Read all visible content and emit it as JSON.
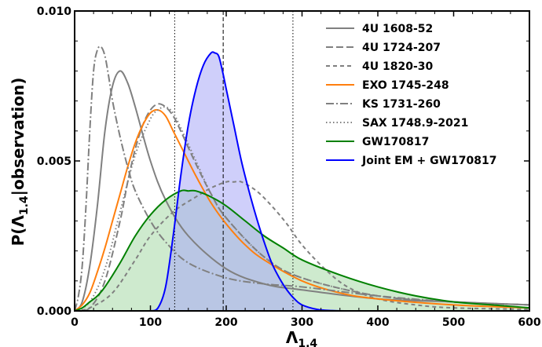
{
  "chart_data": {
    "type": "line",
    "xlabel_main": "Λ",
    "xlabel_sub": "1.4",
    "ylabel_pre": "P(Λ",
    "ylabel_sub": "1.4",
    "ylabel_post": "|observation)",
    "xlim": [
      0,
      600
    ],
    "ylim": [
      0,
      0.01
    ],
    "x_ticks": [
      {
        "value": 0,
        "label": "0"
      },
      {
        "value": 100,
        "label": "100"
      },
      {
        "value": 200,
        "label": "200"
      },
      {
        "value": 300,
        "label": "300"
      },
      {
        "value": 400,
        "label": "400"
      },
      {
        "value": 500,
        "label": "500"
      },
      {
        "value": 600,
        "label": "600"
      }
    ],
    "y_ticks": [
      {
        "value": 0,
        "label": "0.000"
      },
      {
        "value": 0.005,
        "label": "0.005"
      },
      {
        "value": 0.01,
        "label": "0.010"
      }
    ],
    "vertical_lines": [
      {
        "x": 132,
        "style": "dotted"
      },
      {
        "x": 196,
        "style": "dashed"
      },
      {
        "x": 288,
        "style": "dotted"
      }
    ],
    "legend_position": "top-right",
    "series": [
      {
        "name": "4U 1608-52",
        "color": "#808080",
        "dash": "solid",
        "fill": "none",
        "x": [
          0,
          10,
          20,
          30,
          40,
          50,
          60,
          70,
          80,
          100,
          120,
          150,
          200,
          250,
          300,
          400,
          500,
          600
        ],
        "y": [
          0,
          0.0003,
          0.0015,
          0.0035,
          0.006,
          0.0075,
          0.008,
          0.0076,
          0.0068,
          0.005,
          0.0037,
          0.0025,
          0.0014,
          0.0009,
          0.0007,
          0.0004,
          0.0003,
          0.0002
        ]
      },
      {
        "name": "4U 1724-207",
        "color": "#808080",
        "dash": "long-dash",
        "fill": "none",
        "x": [
          0,
          20,
          40,
          60,
          70,
          80,
          90,
          100,
          110,
          120,
          130,
          140,
          160,
          180,
          200,
          250,
          300,
          400,
          500,
          600
        ],
        "y": [
          0,
          0.0001,
          0.001,
          0.003,
          0.0043,
          0.0054,
          0.0062,
          0.0067,
          0.0069,
          0.0068,
          0.0065,
          0.006,
          0.0049,
          0.0039,
          0.0031,
          0.0018,
          0.0011,
          0.0005,
          0.0003,
          0.0002
        ]
      },
      {
        "name": "4U 1820-30",
        "color": "#808080",
        "dash": "short-dash",
        "fill": "none",
        "x": [
          0,
          20,
          50,
          80,
          100,
          130,
          160,
          180,
          200,
          210,
          220,
          240,
          260,
          280,
          300,
          330,
          360,
          400,
          450,
          500,
          600
        ],
        "y": [
          0,
          0.0001,
          0.0006,
          0.0017,
          0.0025,
          0.0033,
          0.0038,
          0.0041,
          0.0043,
          0.0043,
          0.0043,
          0.004,
          0.0035,
          0.0029,
          0.0022,
          0.0014,
          0.0008,
          0.0004,
          0.0002,
          0.0001,
          5e-05
        ]
      },
      {
        "name": "EXO 1745-248",
        "color": "#ff7f0e",
        "dash": "solid",
        "fill": "none",
        "x": [
          0,
          10,
          20,
          30,
          40,
          50,
          60,
          70,
          80,
          90,
          100,
          110,
          120,
          130,
          140,
          160,
          180,
          200,
          225,
          250,
          300,
          350,
          400,
          500,
          600
        ],
        "y": [
          0,
          0.0002,
          0.0006,
          0.0013,
          0.0021,
          0.003,
          0.0039,
          0.0048,
          0.0056,
          0.0062,
          0.0066,
          0.0067,
          0.0065,
          0.006,
          0.0055,
          0.0045,
          0.0036,
          0.0029,
          0.0022,
          0.0017,
          0.001,
          0.0006,
          0.0004,
          0.0002,
          0.0001
        ]
      },
      {
        "name": "KS 1731-260",
        "color": "#808080",
        "dash": "dash-dot",
        "fill": "none",
        "x": [
          0,
          5,
          10,
          15,
          20,
          25,
          30,
          35,
          40,
          45,
          50,
          60,
          70,
          80,
          100,
          120,
          150,
          200,
          250,
          300,
          400,
          500,
          600
        ],
        "y": [
          0,
          0.0005,
          0.0015,
          0.0035,
          0.006,
          0.008,
          0.0087,
          0.0088,
          0.0085,
          0.0078,
          0.007,
          0.0058,
          0.0048,
          0.004,
          0.003,
          0.0023,
          0.0016,
          0.0011,
          0.0009,
          0.0008,
          0.0005,
          0.0003,
          0.0002
        ]
      },
      {
        "name": "SAX 1748.9-2021",
        "color": "#808080",
        "dash": "dotted",
        "fill": "none",
        "x": [
          0,
          20,
          40,
          60,
          80,
          100,
          110,
          120,
          130,
          140,
          160,
          180,
          200,
          250,
          300,
          400,
          500,
          600
        ],
        "y": [
          0,
          0.0003,
          0.0014,
          0.0033,
          0.0052,
          0.0064,
          0.0067,
          0.0068,
          0.0066,
          0.0061,
          0.005,
          0.0039,
          0.0031,
          0.0018,
          0.0011,
          0.0005,
          0.0003,
          0.0002
        ]
      },
      {
        "name": "GW170817",
        "color": "#008000",
        "dash": "solid",
        "fill": "#a6d8a6",
        "x": [
          0,
          10,
          20,
          30,
          40,
          60,
          80,
          100,
          120,
          140,
          150,
          160,
          180,
          200,
          225,
          250,
          275,
          300,
          350,
          400,
          450,
          500,
          550,
          600
        ],
        "y": [
          0,
          0.0001,
          0.0003,
          0.0005,
          0.0008,
          0.0016,
          0.0025,
          0.0032,
          0.0037,
          0.004,
          0.004,
          0.004,
          0.0038,
          0.0035,
          0.003,
          0.0025,
          0.0021,
          0.0017,
          0.0012,
          0.0008,
          0.0005,
          0.0003,
          0.0002,
          0.0001
        ]
      },
      {
        "name": "Joint EM + GW170817",
        "color": "#0000ff",
        "dash": "solid",
        "fill": "#a8a8f5",
        "x": [
          100,
          110,
          120,
          130,
          140,
          150,
          160,
          170,
          180,
          185,
          190,
          195,
          200,
          210,
          220,
          230,
          240,
          250,
          260,
          270,
          280,
          290,
          300,
          320,
          340,
          360
        ],
        "y": [
          0,
          0.0001,
          0.0008,
          0.0025,
          0.0045,
          0.0062,
          0.0074,
          0.0082,
          0.0086,
          0.0086,
          0.0085,
          0.008,
          0.0074,
          0.0062,
          0.005,
          0.004,
          0.0031,
          0.0023,
          0.0016,
          0.0011,
          0.0007,
          0.0004,
          0.0002,
          5e-05,
          1e-05,
          0
        ]
      }
    ]
  }
}
